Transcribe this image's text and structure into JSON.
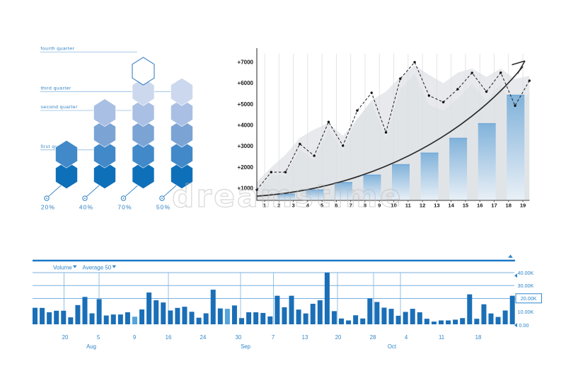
{
  "watermark": {
    "text": "dreamstime",
    "color": "#bababa"
  },
  "chart_data": [
    {
      "id": "hexagon-quarter-chart",
      "type": "bar",
      "title": "",
      "categories": [
        "20%",
        "40%",
        "70%",
        "50%"
      ],
      "values": [
        2,
        4,
        6,
        5
      ],
      "unit": "stacked hexagon segments",
      "columns": [
        {
          "percent": "20%",
          "hexagons": 2,
          "center_x": 94,
          "top_unfilled": false
        },
        {
          "percent": "40%",
          "hexagons": 4,
          "center_x": 148,
          "top_unfilled": false
        },
        {
          "percent": "70%",
          "hexagons": 6,
          "center_x": 202.5,
          "top_unfilled": true
        },
        {
          "percent": "50%",
          "hexagons": 5,
          "center_x": 257,
          "top_unfilled": false
        }
      ],
      "quarter_labels": [
        {
          "label": "first quarter",
          "line_y": 211.7,
          "line_end_x": 132
        },
        {
          "label": "second quarter",
          "line_y": 156.0,
          "line_end_x": 186
        },
        {
          "label": "third quarter",
          "line_y": 129.3,
          "line_end_x": 243
        },
        {
          "label": "fourth quarter",
          "line_y": 73.5,
          "line_end_x": 194
        }
      ],
      "palette_bottom_to_top": [
        "#0f70ba",
        "#4189c9",
        "#7ba4d5",
        "#a9bfe3",
        "#ccd8ee",
        "#dde5f4"
      ],
      "accent_text_color": "#2f80c4",
      "leader_line_color": "#90bbe0"
    },
    {
      "id": "growth-chart",
      "type": "bar+line+area",
      "title": "",
      "xlabel": "",
      "ylabel": "",
      "y_tick_labels": [
        "+1000",
        "+2000",
        "+3000",
        "+4000",
        "+5000",
        "+6000",
        "+7000"
      ],
      "x_tick_labels": [
        "1",
        "2",
        "3",
        "4",
        "5",
        "6",
        "7",
        "8",
        "9",
        "10",
        "11",
        "12",
        "13",
        "14",
        "15",
        "16",
        "17",
        "18",
        "19"
      ],
      "ylim": [
        400,
        7400
      ],
      "grid": "vertical-light",
      "bars": {
        "positions": [
          2,
          4,
          6,
          8,
          10,
          12,
          14,
          16,
          18
        ],
        "values": [
          750,
          950,
          1300,
          1650,
          2150,
          2700,
          3400,
          4100,
          5450
        ]
      },
      "dashed_series": [
        930,
        1770,
        1770,
        3110,
        2550,
        4160,
        3030,
        4700,
        5545,
        3660,
        6215,
        7000,
        5410,
        5100,
        5715,
        6490,
        5600,
        6500,
        4930,
        6120
      ],
      "area_series": [
        1300,
        2000,
        2600,
        3400,
        3800,
        4100,
        3500,
        4300,
        5200,
        5600,
        6300,
        6850,
        6400,
        6000,
        6500,
        6700,
        6300,
        6700,
        6200,
        6350
      ],
      "trend_arrow": true,
      "bar_color_top": "#79aed9",
      "bar_color_bottom": "#eaf1f8",
      "area_color": "#e7e9ec",
      "area2_color": "#d8dce0",
      "line_color": "#2b2b2b",
      "axis_color": "#3a3a3a",
      "grid_color": "#dcdee0",
      "tick_text_color": "#1a1a1a"
    },
    {
      "id": "volume-chart",
      "type": "bar",
      "title": "",
      "legend": [
        {
          "label": "Volume"
        },
        {
          "label": "Average 50"
        }
      ],
      "legend_position": "top-left",
      "right_axis_labels": [
        "40.00K",
        "30.00K",
        "20.00K",
        "10.00K",
        "0.00"
      ],
      "boxed_label": "20.00K",
      "ylim_k": [
        0,
        40
      ],
      "bar_values_k": [
        12.8,
        12.7,
        9.3,
        10.5,
        10.5,
        5.4,
        14.9,
        21.2,
        8.5,
        19.5,
        6.8,
        7.6,
        7.6,
        9.3,
        5.9,
        11.5,
        24.6,
        18.6,
        16.9,
        10.7,
        12.7,
        13.6,
        9.7,
        5.1,
        8.5,
        26.8,
        12.3,
        12.0,
        14.6,
        4.8,
        9.3,
        9.3,
        8.8,
        6.1,
        22.1,
        13.2,
        22.1,
        11.4,
        8.4,
        15.9,
        18.6,
        40.0,
        10.2,
        4.5,
        3.0,
        7.0,
        4.5,
        20.0,
        17.3,
        12.9,
        12.0,
        6.6,
        9.6,
        12.0,
        9.3,
        4.3,
        2.1,
        3.0,
        3.0,
        3.6,
        4.8,
        23.2,
        4.3,
        15.5,
        8.4,
        5.7,
        10.7,
        22.1
      ],
      "light_bar_indices": [
        14,
        27
      ],
      "date_ticks": [
        {
          "label": "20",
          "x": 92,
          "line_x": 90.5
        },
        {
          "label": "5",
          "x": 139,
          "line_x": 140
        },
        {
          "label": "9",
          "x": 190
        },
        {
          "label": "16",
          "x": 238,
          "line_x": 238
        },
        {
          "label": "24",
          "x": 287
        },
        {
          "label": "30",
          "x": 337,
          "line_x": 340
        },
        {
          "label": "7",
          "x": 386,
          "line_x": 386.5
        },
        {
          "label": "13",
          "x": 431
        },
        {
          "label": "20",
          "x": 478,
          "line_x": 477
        },
        {
          "label": "28",
          "x": 527,
          "line_x": 528
        },
        {
          "label": "4",
          "x": 574,
          "line_x": 566
        },
        {
          "label": "11",
          "x": 624
        },
        {
          "label": "18",
          "x": 676
        }
      ],
      "months": [
        {
          "label": "Aug",
          "x": 129
        },
        {
          "label": "Sep",
          "x": 347
        },
        {
          "label": "Oct",
          "x": 554
        }
      ],
      "bar_color": "#1a6fb7",
      "light_bar_color": "#55a4dc",
      "grid_color": "#7ab0de",
      "frame_color": "#1c78c7",
      "label_color": "#2f86c9"
    }
  ]
}
